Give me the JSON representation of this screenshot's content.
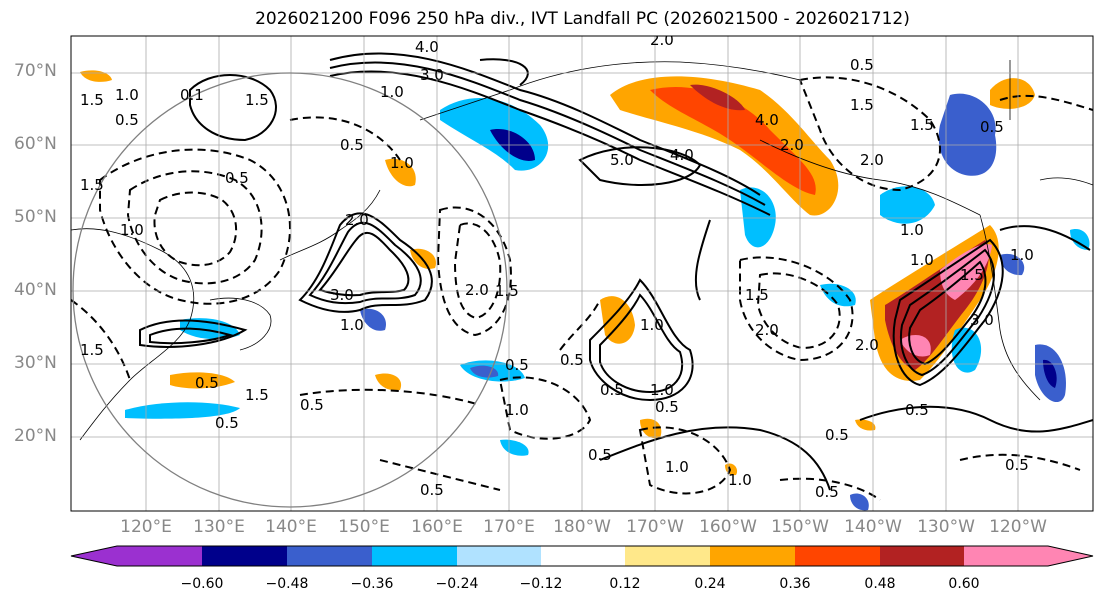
{
  "title": "2026021200 F096 250 hPa div., IVT Landfall PC (2026021500 - 2026021712)",
  "lat_labels": [
    "70°N",
    "60°N",
    "50°N",
    "40°N",
    "30°N",
    "20°N"
  ],
  "lon_labels": [
    "120°E",
    "130°E",
    "140°E",
    "150°E",
    "160°E",
    "170°E",
    "180°W",
    "170°W",
    "160°W",
    "150°W",
    "140°W",
    "130°W",
    "120°W"
  ],
  "colorbar": {
    "ticks": [
      "−0.60",
      "−0.48",
      "−0.36",
      "−0.24",
      "−0.12",
      "0.12",
      "0.24",
      "0.36",
      "0.48",
      "0.60"
    ],
    "colors": [
      "#9b30d0",
      "#00008b",
      "#3a5fcd",
      "#00bfff",
      "#b0e2ff",
      "#ffffff",
      "#ffe88a",
      "#ffa500",
      "#ff4500",
      "#b22222",
      "#ff85b3"
    ]
  },
  "contour_labels": [
    "4.0",
    "3.0",
    "1.0",
    "2.0",
    "0.5",
    "1.5",
    "0.1",
    "0.5",
    "1.0",
    "5.0",
    "4.0",
    "2.0",
    "0.5",
    "1.0",
    "1.5",
    "3.0",
    "2.0",
    "1.0",
    "1.5",
    "1.0",
    "0.5",
    "1.5",
    "2.0",
    "0.5",
    "1.5",
    "0.5",
    "1.0",
    "0.5",
    "1.0",
    "0.5",
    "0.5",
    "1.0",
    "0.5",
    "2.0",
    "1.0",
    "0.5",
    "1.5",
    "1.0",
    "0.5",
    "4.0",
    "1.5",
    "0.5",
    "2.0",
    "3.0",
    "2.0",
    "1.5",
    "0.5",
    "1.5",
    "1.0",
    "0.5",
    "1.0",
    "0.5",
    "0.5",
    "1.0",
    "1.5",
    "0.5"
  ]
}
